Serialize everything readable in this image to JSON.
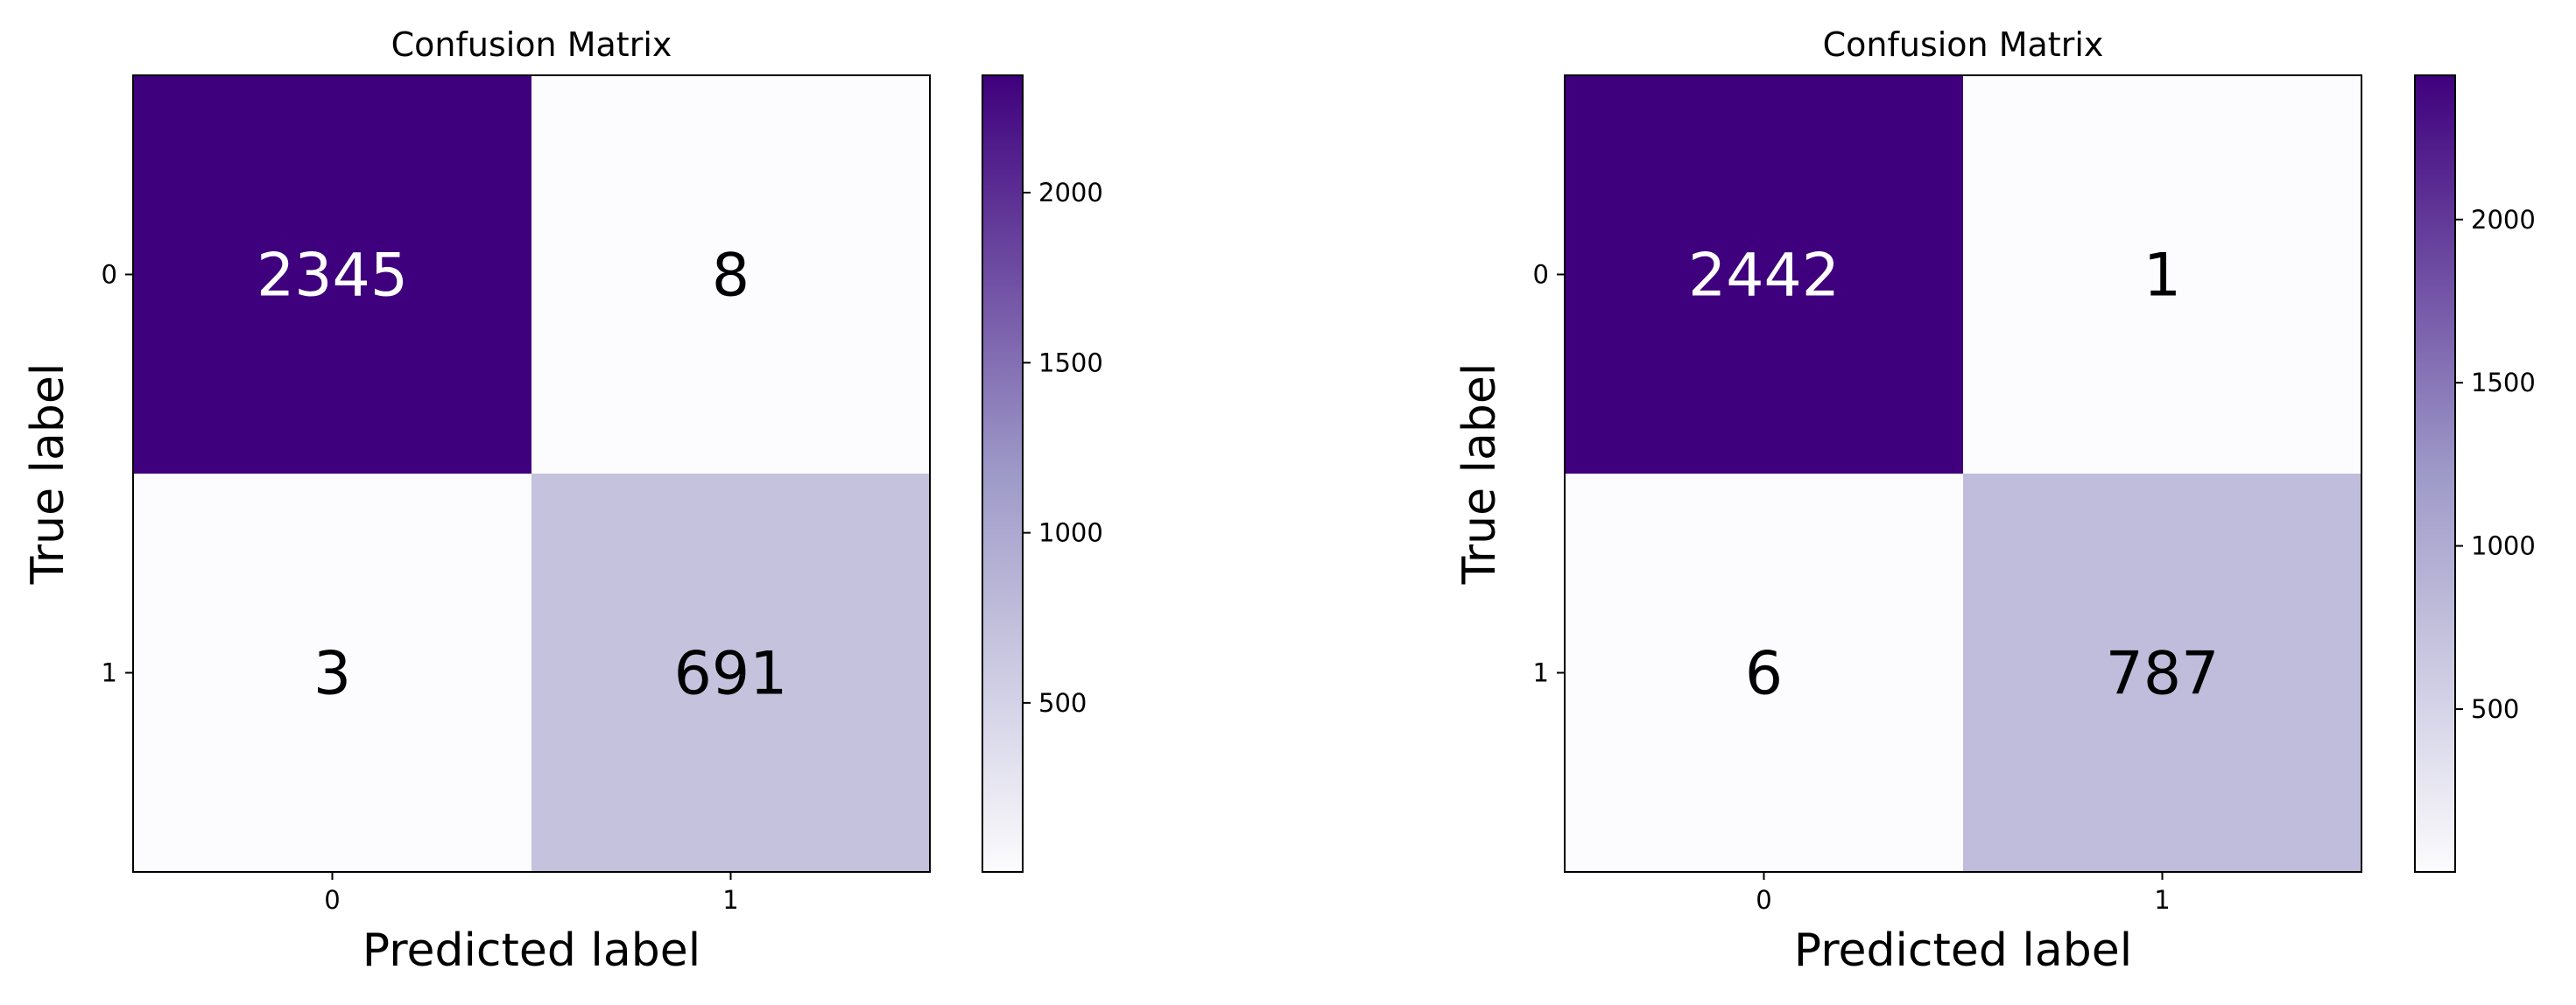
{
  "chart_data": [
    {
      "type": "heatmap",
      "title": "Confusion Matrix",
      "xlabel": "Predicted label",
      "ylabel": "True label",
      "x_categories": [
        "0",
        "1"
      ],
      "y_categories": [
        "0",
        "1"
      ],
      "values": [
        [
          2345,
          8
        ],
        [
          3,
          691
        ]
      ],
      "colormap": "Purples",
      "colorbar": {
        "range": [
          3,
          2345
        ],
        "ticks": [
          500,
          1000,
          1500,
          2000
        ]
      }
    },
    {
      "type": "heatmap",
      "title": "Confusion Matrix",
      "xlabel": "Predicted label",
      "ylabel": "True label",
      "x_categories": [
        "0",
        "1"
      ],
      "y_categories": [
        "0",
        "1"
      ],
      "values": [
        [
          2442,
          1
        ],
        [
          6,
          787
        ]
      ],
      "colormap": "Purples",
      "colorbar": {
        "range": [
          1,
          2442
        ],
        "ticks": [
          500,
          1000,
          1500,
          2000
        ]
      }
    }
  ],
  "colors": {
    "cmap_low": "#fcfbfd",
    "cmap_mid": "#9e9ac8",
    "cmap_high": "#3f007d",
    "text_dark": "#000000",
    "text_light": "#ffffff"
  }
}
